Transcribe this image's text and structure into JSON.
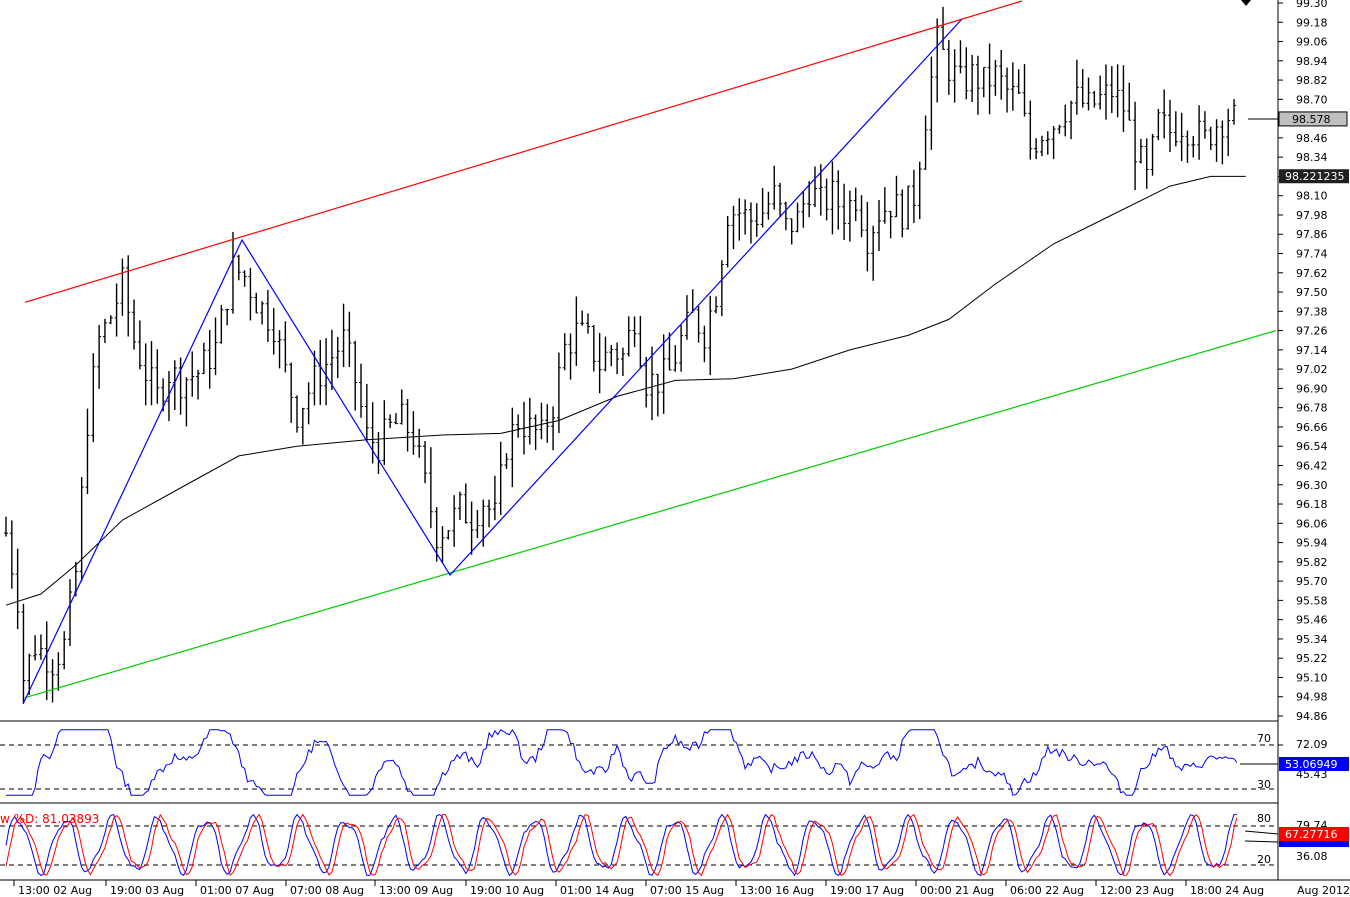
{
  "chart_data": [
    {
      "type": "ohlc",
      "panel": "price",
      "y_ticks": [
        "99.30",
        "99.18",
        "99.06",
        "98.94",
        "98.82",
        "98.70",
        "98.58",
        "98.46",
        "98.34",
        "98.22",
        "98.10",
        "97.98",
        "97.86",
        "97.74",
        "97.62",
        "97.50",
        "97.38",
        "97.26",
        "97.14",
        "97.02",
        "96.90",
        "96.78",
        "96.66",
        "96.54",
        "96.42",
        "96.30",
        "96.18",
        "96.06",
        "95.94",
        "95.82",
        "95.70",
        "95.58",
        "95.46",
        "95.34",
        "95.22",
        "95.10",
        "94.98",
        "94.86"
      ],
      "ylim": [
        94.86,
        99.3
      ],
      "price_label": "98.578",
      "ma_label": "98.221235",
      "colors": {
        "bars": "#000000",
        "zigzag": "#0000ff",
        "upper_channel": "#ff0000",
        "lower_channel": "#00cc00",
        "moving_average": "#000000"
      },
      "channel_upper": [
        {
          "x": 0.5,
          "y": 97.43
        },
        {
          "x": 213,
          "y": 99.3
        }
      ],
      "channel_lower": [
        {
          "x": 0.5,
          "y": 94.98
        },
        {
          "x": 213,
          "y": 97.26
        }
      ],
      "zigzag": [
        {
          "x": 0.5,
          "y": 94.98
        },
        {
          "x": 40,
          "y": 97.84
        },
        {
          "x": 76,
          "y": 95.72
        },
        {
          "x": 160,
          "y": 99.18
        }
      ],
      "moving_average": [
        {
          "x": 0,
          "y": 95.55
        },
        {
          "x": 6,
          "y": 95.62
        },
        {
          "x": 12,
          "y": 95.8
        },
        {
          "x": 20,
          "y": 96.08
        },
        {
          "x": 32,
          "y": 96.32
        },
        {
          "x": 40,
          "y": 96.48
        },
        {
          "x": 50,
          "y": 96.54
        },
        {
          "x": 62,
          "y": 96.58
        },
        {
          "x": 75,
          "y": 96.61
        },
        {
          "x": 85,
          "y": 96.62
        },
        {
          "x": 95,
          "y": 96.7
        },
        {
          "x": 105,
          "y": 96.85
        },
        {
          "x": 115,
          "y": 96.95
        },
        {
          "x": 125,
          "y": 96.96
        },
        {
          "x": 135,
          "y": 97.02
        },
        {
          "x": 145,
          "y": 97.14
        },
        {
          "x": 155,
          "y": 97.23
        },
        {
          "x": 162,
          "y": 97.33
        },
        {
          "x": 170,
          "y": 97.55
        },
        {
          "x": 180,
          "y": 97.8
        },
        {
          "x": 190,
          "y": 97.98
        },
        {
          "x": 200,
          "y": 98.16
        },
        {
          "x": 207,
          "y": 98.22
        },
        {
          "x": 213,
          "y": 98.22
        }
      ],
      "price_path": [
        {
          "x": 0,
          "y": 96.0
        },
        {
          "x": 2,
          "y": 95.6
        },
        {
          "x": 3,
          "y": 95.1
        },
        {
          "x": 5,
          "y": 95.3
        },
        {
          "x": 8,
          "y": 95.2
        },
        {
          "x": 10,
          "y": 95.3
        },
        {
          "x": 12,
          "y": 95.75
        },
        {
          "x": 14,
          "y": 96.7
        },
        {
          "x": 16,
          "y": 97.2
        },
        {
          "x": 18,
          "y": 97.35
        },
        {
          "x": 20,
          "y": 97.55
        },
        {
          "x": 22,
          "y": 97.2
        },
        {
          "x": 24,
          "y": 97.0
        },
        {
          "x": 26,
          "y": 96.85
        },
        {
          "x": 28,
          "y": 97.0
        },
        {
          "x": 30,
          "y": 96.95
        },
        {
          "x": 33,
          "y": 97.0
        },
        {
          "x": 36,
          "y": 97.15
        },
        {
          "x": 39,
          "y": 97.65
        },
        {
          "x": 41,
          "y": 97.6
        },
        {
          "x": 43,
          "y": 97.45
        },
        {
          "x": 46,
          "y": 97.3
        },
        {
          "x": 48,
          "y": 97.0
        },
        {
          "x": 50,
          "y": 96.75
        },
        {
          "x": 53,
          "y": 96.95
        },
        {
          "x": 56,
          "y": 97.1
        },
        {
          "x": 58,
          "y": 97.2
        },
        {
          "x": 60,
          "y": 96.95
        },
        {
          "x": 62,
          "y": 96.6
        },
        {
          "x": 64,
          "y": 96.55
        },
        {
          "x": 66,
          "y": 96.65
        },
        {
          "x": 68,
          "y": 96.7
        },
        {
          "x": 70,
          "y": 96.6
        },
        {
          "x": 72,
          "y": 96.3
        },
        {
          "x": 74,
          "y": 96.0
        },
        {
          "x": 76,
          "y": 96.05
        },
        {
          "x": 78,
          "y": 96.15
        },
        {
          "x": 80,
          "y": 96.1
        },
        {
          "x": 82,
          "y": 96.2
        },
        {
          "x": 84,
          "y": 96.1
        },
        {
          "x": 86,
          "y": 96.55
        },
        {
          "x": 88,
          "y": 96.7
        },
        {
          "x": 90,
          "y": 96.65
        },
        {
          "x": 92,
          "y": 96.6
        },
        {
          "x": 94,
          "y": 96.8
        },
        {
          "x": 96,
          "y": 97.15
        },
        {
          "x": 98,
          "y": 97.25
        },
        {
          "x": 100,
          "y": 97.2
        },
        {
          "x": 102,
          "y": 97.05
        },
        {
          "x": 104,
          "y": 97.15
        },
        {
          "x": 106,
          "y": 97.1
        },
        {
          "x": 108,
          "y": 97.35
        },
        {
          "x": 110,
          "y": 96.95
        },
        {
          "x": 112,
          "y": 96.95
        },
        {
          "x": 114,
          "y": 97.0
        },
        {
          "x": 116,
          "y": 97.2
        },
        {
          "x": 118,
          "y": 97.35
        },
        {
          "x": 120,
          "y": 97.25
        },
        {
          "x": 122,
          "y": 97.5
        },
        {
          "x": 124,
          "y": 98.0
        },
        {
          "x": 126,
          "y": 98.0
        },
        {
          "x": 128,
          "y": 97.95
        },
        {
          "x": 130,
          "y": 98.0
        },
        {
          "x": 132,
          "y": 98.1
        },
        {
          "x": 134,
          "y": 97.9
        },
        {
          "x": 136,
          "y": 97.95
        },
        {
          "x": 138,
          "y": 98.15
        },
        {
          "x": 140,
          "y": 98.05
        },
        {
          "x": 142,
          "y": 98.1
        },
        {
          "x": 144,
          "y": 98.0
        },
        {
          "x": 146,
          "y": 98.1
        },
        {
          "x": 148,
          "y": 97.85
        },
        {
          "x": 150,
          "y": 98.0
        },
        {
          "x": 152,
          "y": 98.05
        },
        {
          "x": 154,
          "y": 98.0
        },
        {
          "x": 156,
          "y": 98.1
        },
        {
          "x": 158,
          "y": 98.6
        },
        {
          "x": 160,
          "y": 99.05
        },
        {
          "x": 162,
          "y": 98.9
        },
        {
          "x": 164,
          "y": 98.8
        },
        {
          "x": 166,
          "y": 98.85
        },
        {
          "x": 168,
          "y": 98.8
        },
        {
          "x": 170,
          "y": 98.85
        },
        {
          "x": 172,
          "y": 98.75
        },
        {
          "x": 174,
          "y": 98.7
        },
        {
          "x": 176,
          "y": 98.4
        },
        {
          "x": 178,
          "y": 98.5
        },
        {
          "x": 180,
          "y": 98.55
        },
        {
          "x": 182,
          "y": 98.65
        },
        {
          "x": 184,
          "y": 98.7
        },
        {
          "x": 186,
          "y": 98.65
        },
        {
          "x": 188,
          "y": 98.7
        },
        {
          "x": 190,
          "y": 98.75
        },
        {
          "x": 192,
          "y": 98.65
        },
        {
          "x": 194,
          "y": 98.4
        },
        {
          "x": 196,
          "y": 98.2
        },
        {
          "x": 198,
          "y": 98.55
        },
        {
          "x": 200,
          "y": 98.5
        },
        {
          "x": 202,
          "y": 98.55
        },
        {
          "x": 204,
          "y": 98.5
        },
        {
          "x": 206,
          "y": 98.45
        },
        {
          "x": 208,
          "y": 98.55
        },
        {
          "x": 210,
          "y": 98.6
        },
        {
          "x": 211,
          "y": 98.58
        }
      ]
    },
    {
      "type": "line",
      "panel": "rsi",
      "levels": [
        "70",
        "30"
      ],
      "right_label": "72.09",
      "right_label_2": "45.43",
      "value_label": "53.06949",
      "color": "#0000ff",
      "ylim": [
        20,
        85
      ]
    },
    {
      "type": "line",
      "panel": "stochastic",
      "title": "w %D: 81.03893",
      "levels": [
        "80",
        "20"
      ],
      "right_label": "36.08",
      "right_label_top": "79.74",
      "value_label": "67.27716",
      "series_colors": [
        "#0000ff",
        "#ff0000"
      ],
      "ylim": [
        0,
        100
      ]
    }
  ],
  "x_axis": {
    "labels": [
      "13:00 02 Aug",
      "19:00 03 Aug",
      "01:00 07 Aug",
      "07:00 08 Aug",
      "13:00 09 Aug",
      "19:00 10 Aug",
      "01:00 14 Aug",
      "07:00 15 Aug",
      "13:00 16 Aug",
      "19:00 17 Aug",
      "00:00 21 Aug",
      "06:00 22 Aug",
      "12:00 23 Aug",
      "18:00 24 Aug"
    ],
    "period_label": "Aug 2012"
  }
}
